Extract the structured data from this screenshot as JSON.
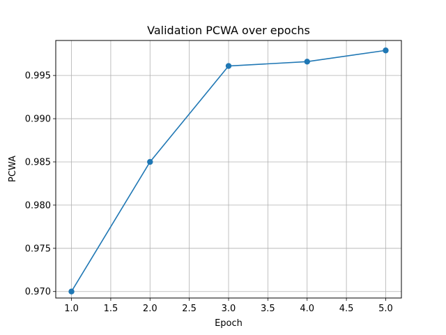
{
  "chart_data": {
    "type": "line",
    "title": "Validation PCWA over epochs",
    "xlabel": "Epoch",
    "ylabel": "PCWA",
    "xlim": [
      0.8,
      5.2
    ],
    "ylim": [
      0.96925,
      0.99905
    ],
    "xticks": [
      1.0,
      1.5,
      2.0,
      2.5,
      3.0,
      3.5,
      4.0,
      4.5,
      5.0
    ],
    "xtick_labels": [
      "1.0",
      "1.5",
      "2.0",
      "2.5",
      "3.0",
      "3.5",
      "4.0",
      "4.5",
      "5.0"
    ],
    "yticks": [
      0.97,
      0.975,
      0.98,
      0.985,
      0.99,
      0.995
    ],
    "ytick_labels": [
      "0.970",
      "0.975",
      "0.980",
      "0.985",
      "0.990",
      "0.995"
    ],
    "grid": true,
    "series": [
      {
        "x": [
          1,
          2,
          3,
          4,
          5
        ],
        "values": [
          0.97,
          0.985,
          0.9961,
          0.9966,
          0.9979
        ],
        "color": "#1f77b4",
        "marker": "circle"
      }
    ]
  }
}
